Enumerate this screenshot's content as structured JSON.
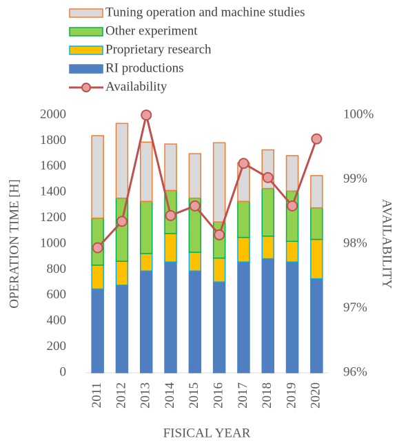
{
  "chart_data": {
    "type": "bar",
    "stacked": true,
    "x_label": "FISICAL YEAR",
    "y_label": "OPERATION TIME [H]",
    "y2_label": "AVAILABILITY",
    "categories": [
      "2011",
      "2012",
      "2013",
      "2014",
      "2015",
      "2016",
      "2017",
      "2018",
      "2019",
      "2020"
    ],
    "series": [
      {
        "name": "RI productions",
        "color": "#4f7fc0",
        "edge": "#4f7fc0",
        "values": [
          650,
          680,
          790,
          860,
          790,
          705,
          860,
          885,
          860,
          730
        ]
      },
      {
        "name": "Proprietary research",
        "color": "#ffc000",
        "edge": "#00b0f0",
        "values": [
          185,
          185,
          135,
          220,
          145,
          185,
          190,
          175,
          160,
          305
        ]
      },
      {
        "name": "Other experiment",
        "color": "#92d050",
        "edge": "#00b050",
        "values": [
          365,
          490,
          405,
          335,
          420,
          280,
          280,
          370,
          390,
          245
        ]
      },
      {
        "name": "Tuning operation and machine studies",
        "color": "#d9d9d9",
        "edge": "#ed7d31",
        "values": [
          640,
          580,
          460,
          360,
          345,
          615,
          300,
          300,
          275,
          250
        ]
      },
      {
        "name": "Availability",
        "type": "line",
        "axis": "y2",
        "color": "#c0504d",
        "marker_color": "#e6a0a0",
        "values": [
          97.94,
          98.35,
          100,
          98.44,
          98.59,
          98.14,
          99.25,
          99.03,
          98.59,
          99.63
        ]
      }
    ],
    "ylim": [
      0,
      2000
    ],
    "yticks": [
      0,
      200,
      400,
      600,
      800,
      1000,
      1200,
      1400,
      1600,
      1800,
      2000
    ],
    "y2lim": [
      96,
      100
    ],
    "y2ticks": [
      {
        "value": 96,
        "label": "96%"
      },
      {
        "value": 97,
        "label": "97%"
      },
      {
        "value": 98,
        "label": "98%"
      },
      {
        "value": 99,
        "label": "99%"
      },
      {
        "value": 100,
        "label": "100%"
      }
    ],
    "grid": false,
    "legend": "top"
  }
}
